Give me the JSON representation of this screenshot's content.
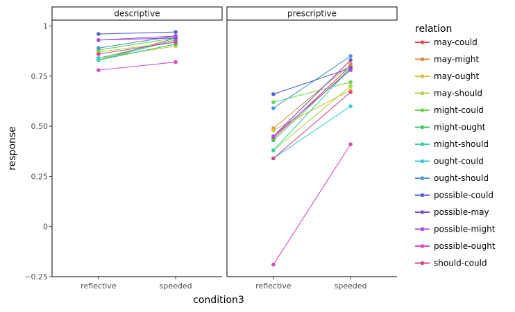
{
  "chart_data": {
    "type": "line",
    "facet_variable": "",
    "panels": [
      "descriptive",
      "prescriptive"
    ],
    "x": [
      "reflective",
      "speeded"
    ],
    "xlabel": "condition3",
    "ylabel": "response",
    "ylim": [
      -0.25,
      1.0
    ],
    "yticks": [
      -0.25,
      0,
      0.25,
      0.5,
      0.75,
      1
    ],
    "ytick_labels": [
      "−0.25",
      "0",
      "0.25",
      "0.50",
      "0.75",
      "1"
    ],
    "legend_title": "relation",
    "legend_position": "right",
    "grid": false,
    "series": [
      {
        "name": "may-could",
        "color": "#e24a52",
        "descriptive": [
          0.83,
          0.94
        ],
        "prescriptive": [
          0.44,
          0.8
        ]
      },
      {
        "name": "may-might",
        "color": "#e48a3c",
        "descriptive": [
          0.84,
          0.93
        ],
        "prescriptive": [
          0.49,
          0.81
        ]
      },
      {
        "name": "may-ought",
        "color": "#d6c23a",
        "descriptive": [
          0.84,
          0.9
        ],
        "prescriptive": [
          0.48,
          0.68
        ]
      },
      {
        "name": "may-should",
        "color": "#a8d44a",
        "descriptive": [
          0.87,
          0.92
        ],
        "prescriptive": [
          0.38,
          0.7
        ]
      },
      {
        "name": "might-could",
        "color": "#6bd44a",
        "descriptive": [
          0.88,
          0.94
        ],
        "prescriptive": [
          0.62,
          0.72
        ]
      },
      {
        "name": "might-ought",
        "color": "#42c766",
        "descriptive": [
          0.83,
          0.91
        ],
        "prescriptive": [
          0.43,
          0.79
        ]
      },
      {
        "name": "might-should",
        "color": "#3fd1a4",
        "descriptive": [
          0.83,
          0.93
        ],
        "prescriptive": [
          0.38,
          0.79
        ]
      },
      {
        "name": "ought-could",
        "color": "#41c8d6",
        "descriptive": [
          0.84,
          0.93
        ],
        "prescriptive": [
          0.34,
          0.6
        ]
      },
      {
        "name": "ought-should",
        "color": "#4a98d9",
        "descriptive": [
          0.89,
          0.95
        ],
        "prescriptive": [
          0.59,
          0.85
        ]
      },
      {
        "name": "possible-could",
        "color": "#4e5fd8",
        "descriptive": [
          0.96,
          0.97
        ],
        "prescriptive": [
          0.66,
          0.79
        ]
      },
      {
        "name": "possible-may",
        "color": "#7b4fd9",
        "descriptive": [
          0.93,
          0.94
        ],
        "prescriptive": [
          0.45,
          0.83
        ]
      },
      {
        "name": "possible-might",
        "color": "#b04bd9",
        "descriptive": [
          0.93,
          0.95
        ],
        "prescriptive": [
          0.45,
          0.78
        ]
      },
      {
        "name": "possible-ought",
        "color": "#d94bc4",
        "descriptive": [
          0.78,
          0.82
        ],
        "prescriptive": [
          -0.19,
          0.41
        ]
      },
      {
        "name": "should-could",
        "color": "#d9487e",
        "descriptive": [
          0.86,
          0.92
        ],
        "prescriptive": [
          0.34,
          0.67
        ]
      }
    ]
  }
}
